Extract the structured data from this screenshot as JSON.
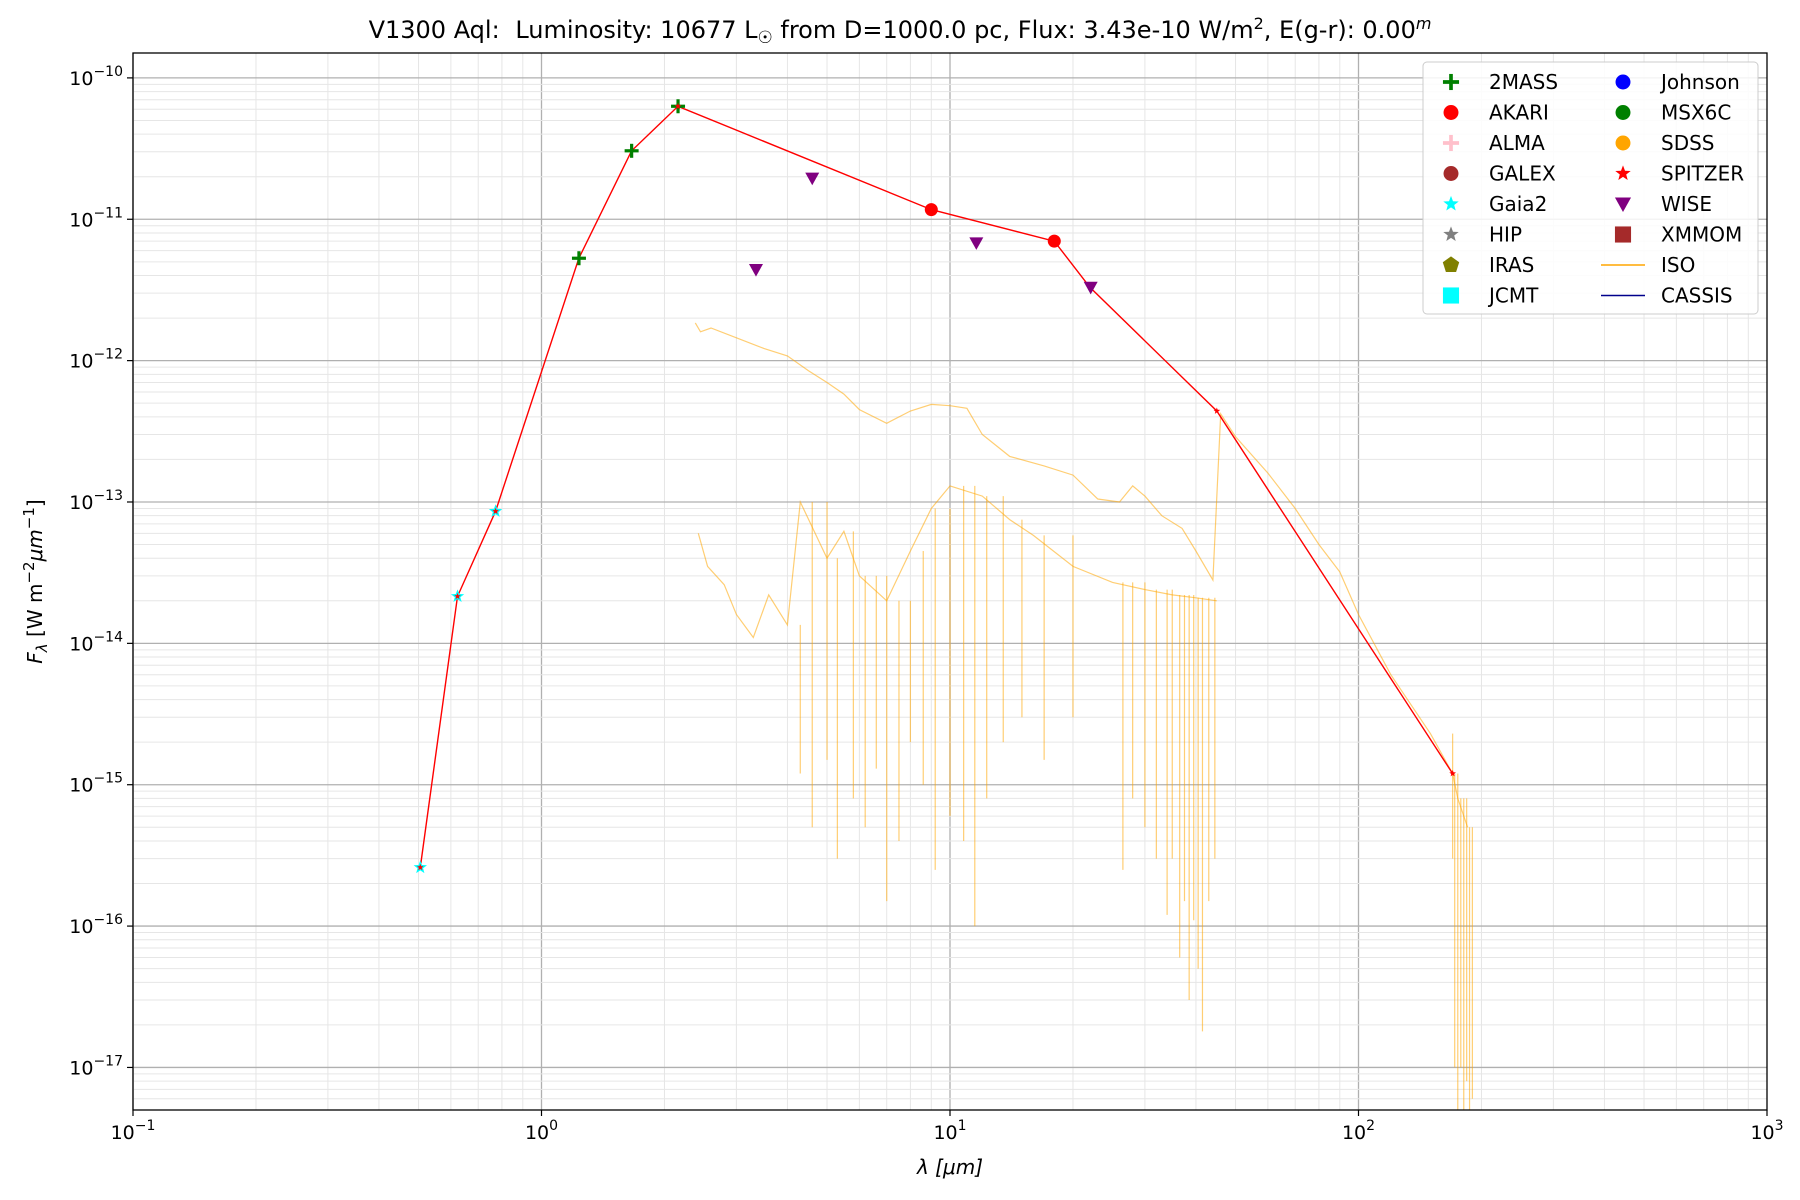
{
  "chart_data": {
    "type": "scatter",
    "title_parts": {
      "star": "V1300 Aql:",
      "lum_prefix": "Luminosity: 10677 L",
      "sun_symbol": "☉",
      "lum_suffix": " from D=1000.0 pc, Flux: 3.43e-10 W/m",
      "flux_exp": "2",
      "ext": ", E(g-r): 0.00",
      "ext_sup": "m"
    },
    "xlabel": "λ [μm]",
    "ylabel_parts": {
      "main": "F",
      "sub": "λ",
      "unit_a": " [W m",
      "exp_a": "−2",
      "unit_b": "μm",
      "exp_b": "−1",
      "unit_c": "]"
    },
    "x_scale": "log",
    "y_scale": "log",
    "xlim": [
      0.1,
      1000
    ],
    "ylim": [
      5e-18,
      1.5e-10
    ],
    "grid": true,
    "legend_position": "top-right",
    "x_ticks": [
      {
        "value": 0.1,
        "base": "10",
        "exp": "−1"
      },
      {
        "value": 1,
        "base": "10",
        "exp": "0"
      },
      {
        "value": 10,
        "base": "10",
        "exp": "1"
      },
      {
        "value": 100,
        "base": "10",
        "exp": "2"
      },
      {
        "value": 1000,
        "base": "10",
        "exp": "3"
      }
    ],
    "y_ticks": [
      {
        "value": 1e-17,
        "base": "10",
        "exp": "−17"
      },
      {
        "value": 1e-16,
        "base": "10",
        "exp": "−16"
      },
      {
        "value": 1e-15,
        "base": "10",
        "exp": "−15"
      },
      {
        "value": 1e-14,
        "base": "10",
        "exp": "−14"
      },
      {
        "value": 1e-13,
        "base": "10",
        "exp": "−13"
      },
      {
        "value": 1e-12,
        "base": "10",
        "exp": "−12"
      },
      {
        "value": 1e-11,
        "base": "10",
        "exp": "−11"
      },
      {
        "value": 1e-10,
        "base": "10",
        "exp": "−10"
      }
    ],
    "legend": [
      {
        "label": "2MASS",
        "marker": "plus",
        "color": "#008000"
      },
      {
        "label": "AKARI",
        "marker": "circle",
        "color": "#ff0000"
      },
      {
        "label": "ALMA",
        "marker": "plus",
        "color": "#ffc0cb"
      },
      {
        "label": "GALEX",
        "marker": "circle",
        "color": "#a52a2a"
      },
      {
        "label": "Gaia2",
        "marker": "star",
        "color": "#00ffff"
      },
      {
        "label": "HIP",
        "marker": "star",
        "color": "#808080"
      },
      {
        "label": "IRAS",
        "marker": "pentagon",
        "color": "#808000"
      },
      {
        "label": "JCMT",
        "marker": "square",
        "color": "#00ffff"
      },
      {
        "label": "Johnson",
        "marker": "circle",
        "color": "#0000ff"
      },
      {
        "label": "MSX6C",
        "marker": "circle",
        "color": "#008000"
      },
      {
        "label": "SDSS",
        "marker": "circle",
        "color": "#ffa500"
      },
      {
        "label": "SPITZER",
        "marker": "star",
        "color": "#ff0000"
      },
      {
        "label": "WISE",
        "marker": "triangle-down",
        "color": "#800080"
      },
      {
        "label": "XMMOM",
        "marker": "square",
        "color": "#a52a2a"
      },
      {
        "label": "ISO",
        "marker": "line",
        "color": "#ffa500"
      },
      {
        "label": "CASSIS",
        "marker": "line",
        "color": "#00008b"
      }
    ],
    "sed_line": {
      "color": "#ff0000",
      "points": [
        [
          0.505,
          2.6e-16
        ],
        [
          0.623,
          2.15e-14
        ],
        [
          0.772,
          8.6e-14
        ],
        [
          1.235,
          5.3e-12
        ],
        [
          1.662,
          3.05e-11
        ],
        [
          2.159,
          6.3e-11
        ],
        [
          9.0,
          1.17e-11
        ],
        [
          18.0,
          7e-12
        ],
        [
          22.0,
          3.3e-12
        ],
        [
          45.0,
          4.4e-13
        ],
        [
          170.0,
          1.2e-15
        ]
      ]
    },
    "series": [
      {
        "name": "Gaia2",
        "marker": "star",
        "color": "#00ffff",
        "x": [
          0.505,
          0.623,
          0.772
        ],
        "y": [
          2.6e-16,
          2.15e-14,
          8.6e-14
        ]
      },
      {
        "name": "2MASS",
        "marker": "plus",
        "color": "#008000",
        "x": [
          1.235,
          1.662,
          2.159
        ],
        "y": [
          5.3e-12,
          3.05e-11,
          6.3e-11
        ]
      },
      {
        "name": "AKARI",
        "marker": "circle",
        "color": "#ff0000",
        "x": [
          9.0,
          18.0
        ],
        "y": [
          1.17e-11,
          7e-12
        ]
      },
      {
        "name": "WISE",
        "marker": "triangle-down",
        "color": "#800080",
        "x": [
          3.35,
          4.6,
          11.6,
          22.1
        ],
        "y": [
          4.4e-12,
          1.95e-11,
          6.8e-12,
          3.3e-12
        ]
      },
      {
        "name": "SPITZER",
        "marker": "star",
        "color": "#ff0000",
        "x": [
          0.505,
          0.623,
          0.772,
          2.159,
          45.0,
          170.0
        ],
        "y": [
          2.6e-16,
          2.15e-14,
          8.6e-14,
          6.3e-11,
          4.4e-13,
          1.2e-15
        ]
      }
    ],
    "iso_upper": [
      [
        2.38,
        1.85e-12
      ],
      [
        2.45,
        1.6e-12
      ],
      [
        2.6,
        1.7e-12
      ],
      [
        3.0,
        1.45e-12
      ],
      [
        3.5,
        1.22e-12
      ],
      [
        4.0,
        1.08e-12
      ],
      [
        4.5,
        8.5e-13
      ],
      [
        5.0,
        7e-13
      ],
      [
        5.5,
        5.8e-13
      ],
      [
        6.0,
        4.5e-13
      ],
      [
        7.0,
        3.6e-13
      ],
      [
        8.0,
        4.4e-13
      ],
      [
        9.0,
        4.9e-13
      ],
      [
        10.0,
        4.8e-13
      ],
      [
        11.0,
        4.6e-13
      ],
      [
        12.0,
        3e-13
      ],
      [
        14.0,
        2.1e-13
      ],
      [
        17.0,
        1.8e-13
      ],
      [
        20.0,
        1.55e-13
      ],
      [
        23.0,
        1.05e-13
      ],
      [
        26.0,
        1e-13
      ],
      [
        28.0,
        1.3e-13
      ],
      [
        30.0,
        1.1e-13
      ],
      [
        33.0,
        8e-14
      ],
      [
        37.0,
        6.5e-14
      ],
      [
        40.0,
        4.5e-14
      ],
      [
        44.0,
        2.8e-14
      ],
      [
        46.0,
        4.2e-13
      ],
      [
        50.0,
        2.9e-13
      ],
      [
        60.0,
        1.6e-13
      ],
      [
        70.0,
        9e-14
      ],
      [
        80.0,
        5e-14
      ],
      [
        90.0,
        3.2e-14
      ],
      [
        100.0,
        1.6e-14
      ],
      [
        120.0,
        6e-15
      ],
      [
        150.0,
        2.3e-15
      ],
      [
        170.0,
        1.2e-15
      ],
      [
        175.0,
        8e-16
      ],
      [
        185.0,
        5e-16
      ]
    ],
    "iso_lower": [
      [
        2.42,
        6e-14
      ],
      [
        2.55,
        3.5e-14
      ],
      [
        2.8,
        2.6e-14
      ],
      [
        3.0,
        1.6e-14
      ],
      [
        3.3,
        1.1e-14
      ],
      [
        3.6,
        2.2e-14
      ],
      [
        4.0,
        1.35e-14
      ],
      [
        4.3,
        1e-13
      ],
      [
        5.0,
        4e-14
      ],
      [
        5.5,
        6.2e-14
      ],
      [
        6.0,
        3e-14
      ],
      [
        7.0,
        2e-14
      ],
      [
        8.0,
        4.5e-14
      ],
      [
        9.0,
        9e-14
      ],
      [
        10.0,
        1.3e-13
      ],
      [
        12.0,
        1.1e-13
      ],
      [
        14.0,
        7.5e-14
      ],
      [
        16.0,
        5.8e-14
      ],
      [
        20.0,
        3.5e-14
      ],
      [
        25.0,
        2.7e-14
      ],
      [
        30.0,
        2.4e-14
      ],
      [
        35.0,
        2.2e-14
      ],
      [
        40.0,
        2.1e-14
      ],
      [
        45.0,
        2e-14
      ]
    ],
    "iso_drops": [
      [
        4.3,
        1.2e-15
      ],
      [
        4.6,
        5e-16
      ],
      [
        5.0,
        1.5e-15
      ],
      [
        5.3,
        3e-16
      ],
      [
        5.8,
        8e-16
      ],
      [
        6.2,
        5e-16
      ],
      [
        6.6,
        1.3e-15
      ],
      [
        7.0,
        1.5e-16
      ],
      [
        7.5,
        4e-16
      ],
      [
        8.0,
        2e-15
      ],
      [
        8.6,
        1e-15
      ],
      [
        9.2,
        2.5e-16
      ],
      [
        10.0,
        6e-16
      ],
      [
        10.8,
        4e-16
      ],
      [
        11.5,
        1e-16
      ],
      [
        12.3,
        8e-16
      ],
      [
        13.5,
        2e-15
      ],
      [
        15.0,
        3e-15
      ],
      [
        17.0,
        1.5e-15
      ],
      [
        20.0,
        3e-15
      ],
      [
        26.5,
        2.5e-16
      ],
      [
        28.0,
        8e-16
      ],
      [
        30.0,
        5e-16
      ],
      [
        32.0,
        3e-16
      ],
      [
        34.0,
        1.2e-16
      ],
      [
        35.0,
        3e-16
      ],
      [
        36.5,
        6e-17
      ],
      [
        37.5,
        1.5e-16
      ],
      [
        38.5,
        3e-17
      ],
      [
        39.5,
        1.1e-16
      ],
      [
        40.5,
        5e-17
      ],
      [
        41.5,
        1.8e-17
      ],
      [
        43.0,
        1.5e-16
      ],
      [
        44.5,
        3e-16
      ],
      [
        170.0,
        3e-16
      ],
      [
        172.0,
        1e-17
      ],
      [
        175.0,
        5e-18
      ],
      [
        178.0,
        1e-17
      ],
      [
        181.0,
        5e-18
      ],
      [
        184.0,
        8e-18
      ],
      [
        187.0,
        5e-18
      ],
      [
        190.0,
        6e-18
      ]
    ]
  }
}
